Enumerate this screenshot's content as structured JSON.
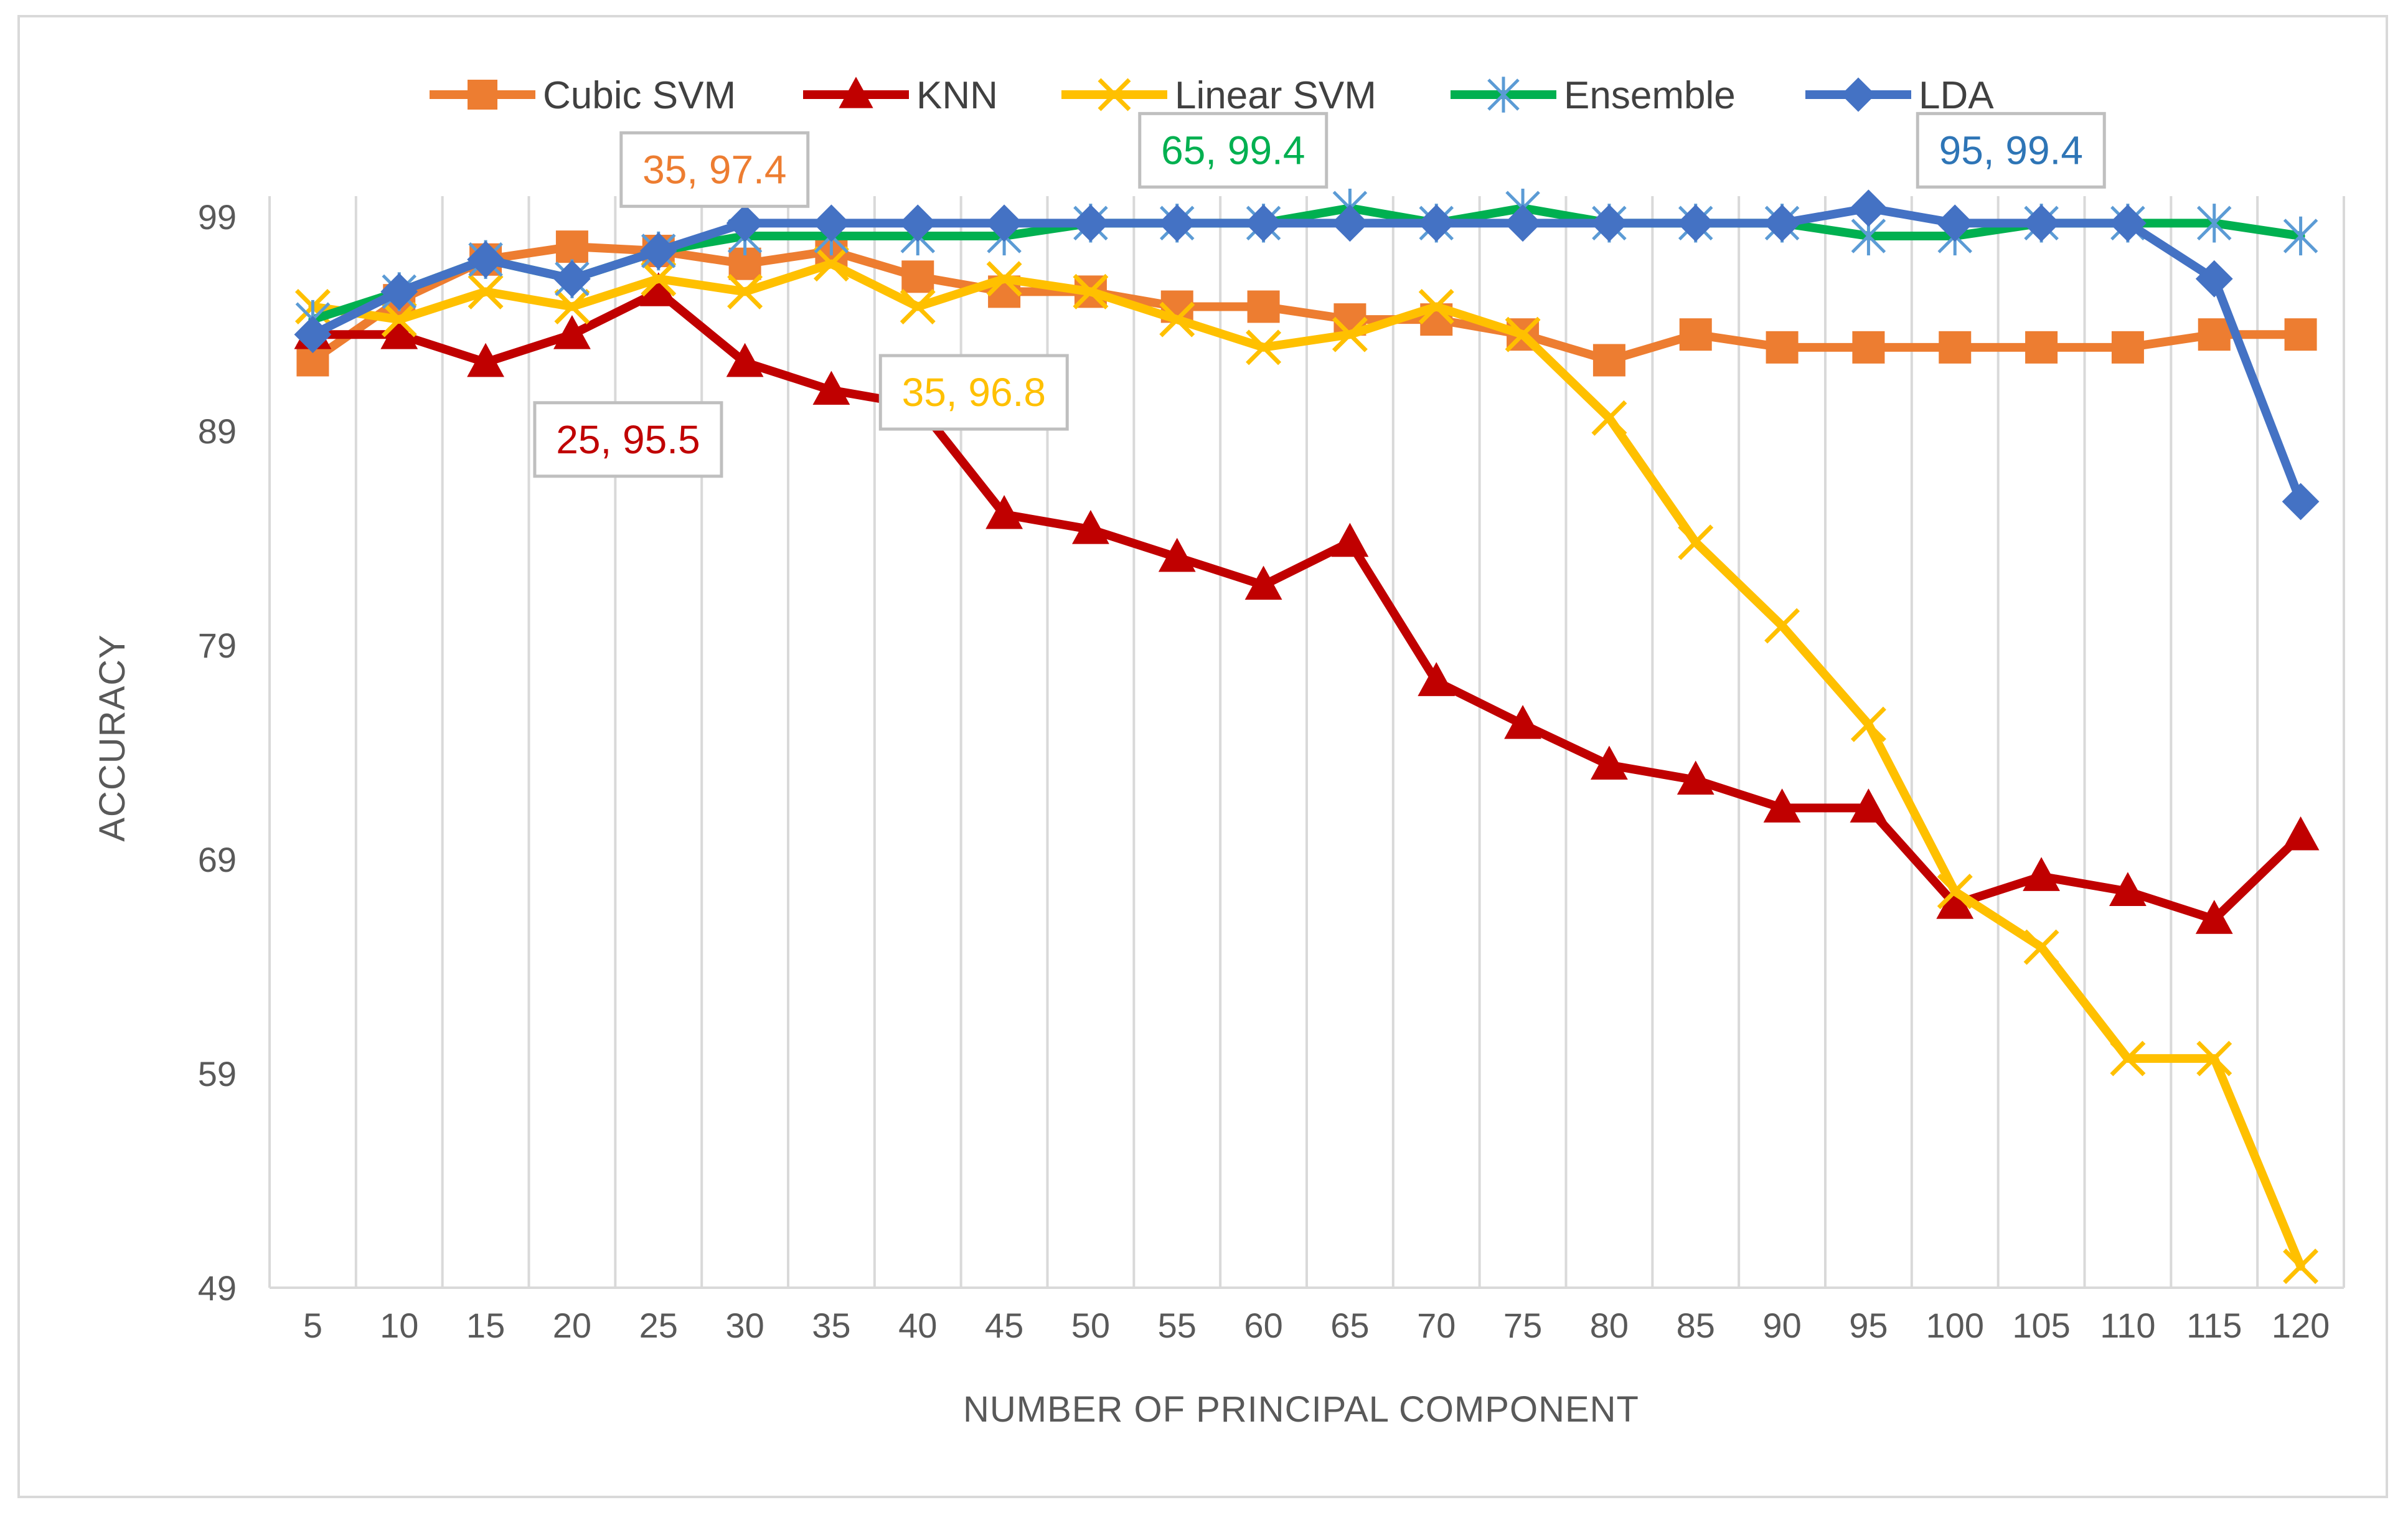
{
  "chart_data": {
    "type": "line",
    "title": "",
    "xlabel": "NUMBER OF PRINCIPAL COMPONENT",
    "ylabel": "ACCURACY",
    "ylim": [
      49,
      99
    ],
    "yticks": [
      49,
      59,
      69,
      79,
      89,
      99
    ],
    "grid": "vertical",
    "legend_position": "top",
    "categories": [
      "5",
      "10",
      "15",
      "20",
      "25",
      "30",
      "35",
      "40",
      "45",
      "50",
      "55",
      "60",
      "65",
      "70",
      "75",
      "80",
      "85",
      "90",
      "95",
      "100",
      "105",
      "110",
      "115",
      "120"
    ],
    "series": [
      {
        "name": "Cubic SVM",
        "color": "#ED7D31",
        "marker": "square",
        "values": [
          92.3,
          95.1,
          97.0,
          97.6,
          97.4,
          96.8,
          97.4,
          96.2,
          95.5,
          95.5,
          94.8,
          94.8,
          94.2,
          94.2,
          93.5,
          92.3,
          93.5,
          92.9,
          92.9,
          92.9,
          92.9,
          92.9,
          93.5,
          93.5
        ]
      },
      {
        "name": "KNN",
        "color": "#C00000",
        "marker": "triangle",
        "values": [
          93.5,
          93.5,
          92.2,
          93.5,
          95.5,
          92.2,
          90.9,
          90.2,
          85.1,
          84.4,
          83.1,
          81.8,
          83.8,
          77.3,
          75.3,
          73.4,
          72.7,
          71.4,
          71.4,
          66.9,
          68.2,
          67.5,
          66.2,
          70.1
        ]
      },
      {
        "name": "Linear SVM",
        "color": "#FFC000",
        "marker": "x",
        "values": [
          94.8,
          94.2,
          95.5,
          94.8,
          96.1,
          95.5,
          96.8,
          94.8,
          96.1,
          95.5,
          94.2,
          92.9,
          93.5,
          94.8,
          93.5,
          89.6,
          83.8,
          79.9,
          75.3,
          67.5,
          64.9,
          59.7,
          59.7,
          50.0
        ]
      },
      {
        "name": "Ensemble",
        "color": "#00B050",
        "marker": "asterisk",
        "values": [
          94.2,
          95.5,
          97.0,
          96.1,
          97.4,
          98.1,
          98.1,
          98.1,
          98.1,
          98.7,
          98.7,
          98.7,
          99.4,
          98.7,
          99.4,
          98.7,
          98.7,
          98.7,
          98.1,
          98.1,
          98.7,
          98.7,
          98.7,
          98.1
        ]
      },
      {
        "name": "LDA",
        "color": "#4472C4",
        "marker": "diamond",
        "values": [
          93.5,
          95.5,
          97.0,
          96.1,
          97.4,
          98.7,
          98.7,
          98.7,
          98.7,
          98.7,
          98.7,
          98.7,
          98.7,
          98.7,
          98.7,
          98.7,
          98.7,
          98.7,
          99.4,
          98.7,
          98.7,
          98.7,
          96.1,
          85.7
        ]
      }
    ],
    "annotations": [
      {
        "text": "35, 97.4",
        "series": "Cubic SVM",
        "color": "#ED7D31",
        "near_category": "25",
        "near_value": 101.2
      },
      {
        "text": "65, 99.4",
        "series": "Ensemble",
        "color": "#00B050",
        "near_category": "55",
        "near_value": 102.1
      },
      {
        "text": "95, 99.4",
        "series": "LDA",
        "color": "#2E75B6",
        "near_category": "100",
        "near_value": 102.1
      },
      {
        "text": "25, 95.5",
        "series": "KNN",
        "color": "#C00000",
        "near_category": "20",
        "near_value": 88.6
      },
      {
        "text": "35, 96.8",
        "series": "Linear SVM",
        "color": "#FFC000",
        "near_category": "40",
        "near_value": 90.8
      }
    ]
  }
}
